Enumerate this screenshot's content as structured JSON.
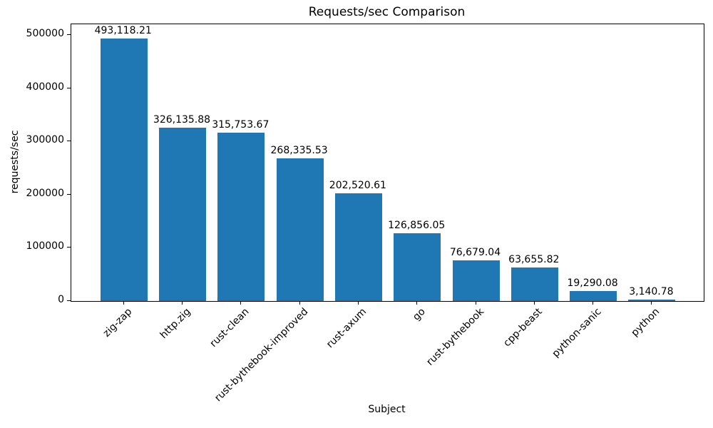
{
  "chart_data": {
    "type": "bar",
    "title": "Requests/sec Comparison",
    "xlabel": "Subject",
    "ylabel": "requests/sec",
    "categories": [
      "zig-zap",
      "http.zig",
      "rust-clean",
      "rust-bythebook-improved",
      "rust-axum",
      "go",
      "rust-bythebook",
      "cpp-beast",
      "python-sanic",
      "python"
    ],
    "values": [
      493118.21,
      326135.88,
      315753.67,
      268335.53,
      202520.61,
      126856.05,
      76679.04,
      63655.82,
      19290.08,
      3140.78
    ],
    "value_labels": [
      "493,118.21",
      "326,135.88",
      "315,753.67",
      "268,335.53",
      "202,520.61",
      "126,856.05",
      "76,679.04",
      "63,655.82",
      "19,290.08",
      "3,140.78"
    ],
    "yticks": [
      0,
      100000,
      200000,
      300000,
      400000,
      500000
    ],
    "ytick_labels": [
      "0",
      "100000",
      "200000",
      "300000",
      "400000",
      "500000"
    ],
    "ylim": [
      0,
      520000
    ],
    "bar_color": "#1f77b4",
    "grid": false,
    "legend": null
  }
}
